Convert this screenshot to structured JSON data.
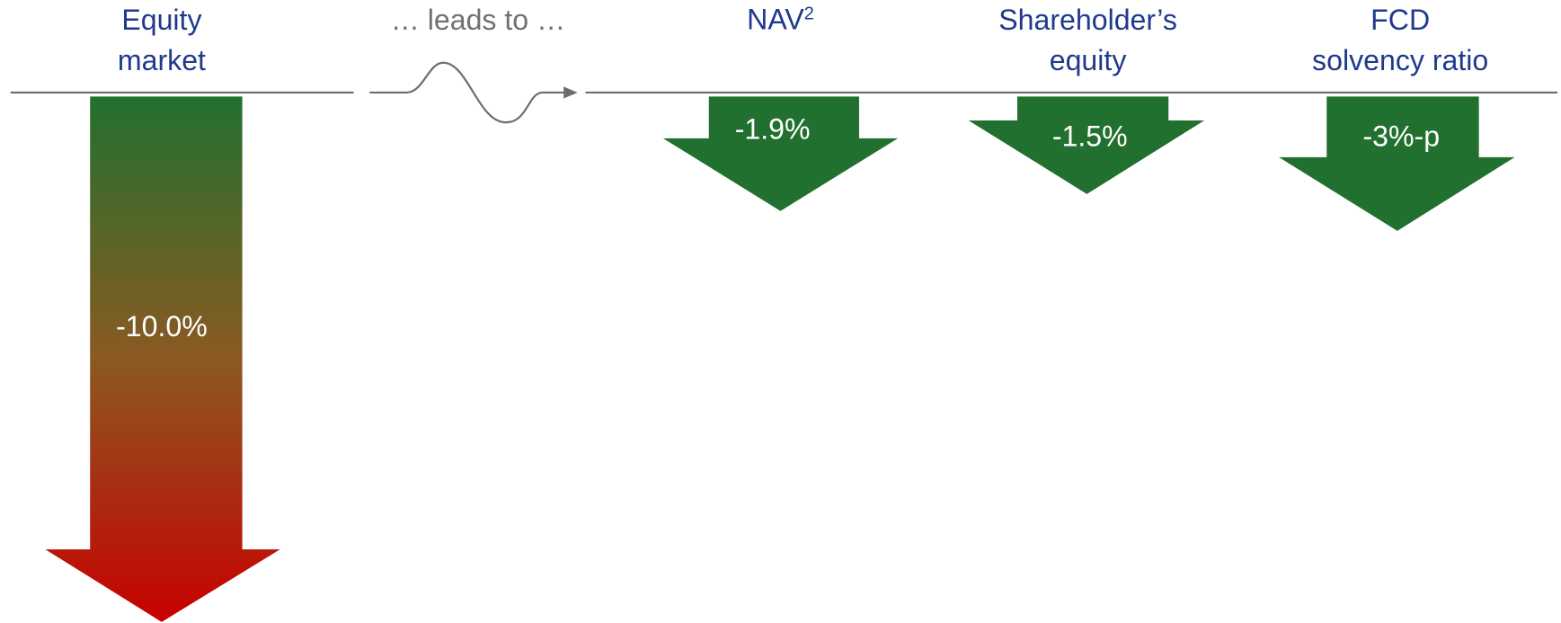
{
  "source": {
    "title_lines": [
      "Equity",
      "market"
    ],
    "value": "-10.0%"
  },
  "connector": "… leads to …",
  "outcomes": [
    {
      "title": "NAV",
      "superscript": "2",
      "value": "-1.9%"
    },
    {
      "title_lines": [
        "Shareholder’s",
        "equity"
      ],
      "value": "-1.5%"
    },
    {
      "title_lines": [
        "FCD",
        "solvency ratio"
      ],
      "value": "-3%-p"
    }
  ]
}
